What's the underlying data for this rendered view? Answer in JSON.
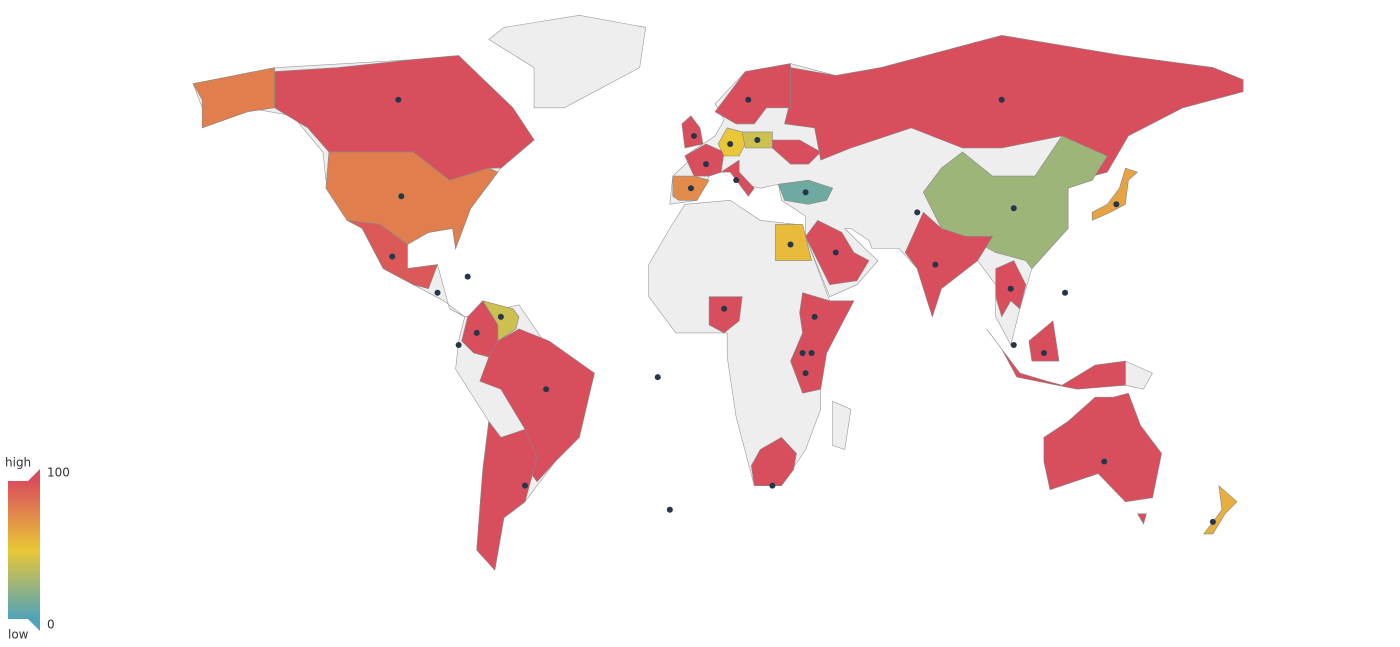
{
  "chart_data": {
    "type": "map",
    "values": [
      100,
      80,
      95,
      100,
      100,
      40,
      100,
      100,
      25,
      100,
      100,
      55,
      100,
      100,
      100,
      100,
      100,
      65,
      100,
      75,
      50,
      40,
      10,
      60,
      100,
      100
    ],
    "visual_map": {
      "min": 0,
      "max": 100,
      "text": [
        "high",
        "low"
      ],
      "colors": [
        "#50a3ba",
        "#eac736",
        "#d94e5d"
      ]
    },
    "points": [
      [
        -100,
        62
      ],
      [
        -99,
        38
      ],
      [
        -102,
        23
      ],
      [
        -51,
        -10
      ],
      [
        -74,
        4
      ],
      [
        -66,
        8
      ],
      [
        -58,
        -34
      ],
      [
        100,
        62
      ],
      [
        104,
        35
      ],
      [
        78,
        21
      ],
      [
        45,
        24
      ],
      [
        30,
        26
      ],
      [
        8,
        10
      ],
      [
        38,
        8
      ],
      [
        37,
        -1
      ],
      [
        35,
        -6
      ],
      [
        24,
        -34
      ],
      [
        134,
        -28
      ],
      [
        114,
        -1
      ],
      [
        104,
        1
      ],
      [
        138,
        36
      ],
      [
        -3,
        40
      ],
      [
        2,
        46
      ],
      [
        -2,
        53
      ],
      [
        10,
        51
      ],
      [
        19,
        52
      ],
      [
        35,
        39
      ],
      [
        12,
        42
      ],
      [
        16,
        62
      ],
      [
        34,
        -1
      ],
      [
        72,
        34
      ],
      [
        103,
        15
      ],
      [
        121,
        14
      ],
      [
        -77,
        18
      ],
      [
        -87,
        14
      ],
      [
        170,
        -43
      ],
      [
        -14,
        -7
      ],
      [
        -10,
        -40
      ],
      [
        -80,
        1
      ]
    ]
  }
}
